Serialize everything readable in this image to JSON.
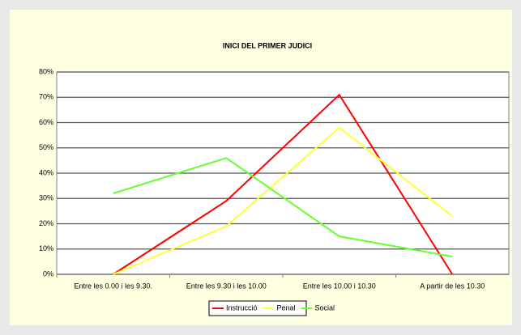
{
  "chart_data": {
    "type": "line",
    "title": "INICI DEL PRIMER JUDICI",
    "categories": [
      "Entre les 0.00 i les 9.30.",
      "Entre les 9.30 i les 10.00",
      "Entre les 10.00 i 10.30",
      "A partir de les 10.30"
    ],
    "series": [
      {
        "name": "Instrucció",
        "color": "#ff0000",
        "values": [
          0,
          29,
          71,
          0
        ]
      },
      {
        "name": "Penal",
        "color": "#ffff33",
        "values": [
          0,
          19,
          58,
          23
        ]
      },
      {
        "name": "Social",
        "color": "#66ff33",
        "values": [
          32,
          46,
          15,
          7
        ]
      }
    ],
    "ylim": [
      0,
      80
    ],
    "yticks": [
      {
        "value": 0,
        "label": "0%"
      },
      {
        "value": 10,
        "label": "10%"
      },
      {
        "value": 20,
        "label": "20%"
      },
      {
        "value": 30,
        "label": "30%"
      },
      {
        "value": 40,
        "label": "40%"
      },
      {
        "value": 50,
        "label": "50%"
      },
      {
        "value": 60,
        "label": "60%"
      },
      {
        "value": 70,
        "label": "70%"
      },
      {
        "value": 80,
        "label": "80%"
      }
    ],
    "grid": true,
    "legend": "bottom"
  }
}
